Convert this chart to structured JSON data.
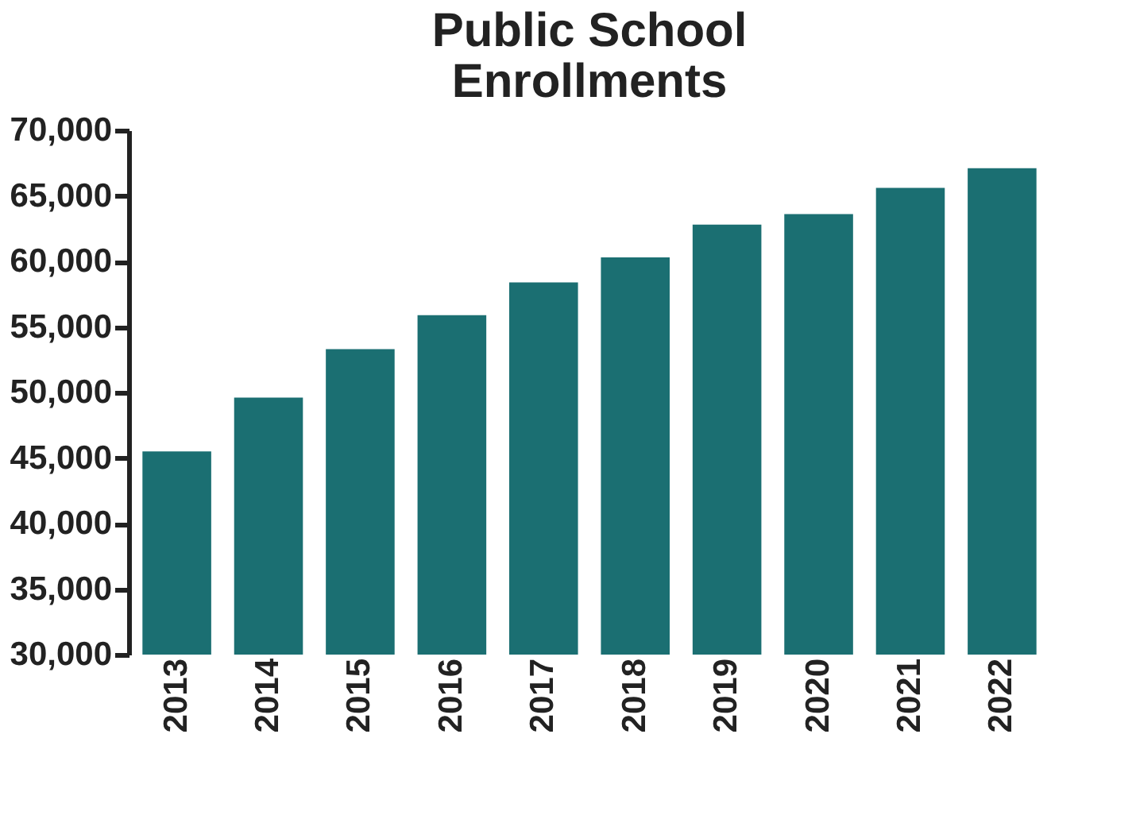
{
  "chart_data": {
    "type": "bar",
    "title": [
      "Public School",
      "Enrollments"
    ],
    "categories": [
      "2013",
      "2014",
      "2015",
      "2016",
      "2017",
      "2018",
      "2019",
      "2020",
      "2021",
      "2022"
    ],
    "values": [
      45500,
      49600,
      53300,
      55900,
      58400,
      60300,
      62800,
      63600,
      65600,
      67100
    ],
    "color": "#1b6f72",
    "ylim": [
      30000,
      70000
    ],
    "yticks": [
      {
        "value": 30000,
        "label": "30,000"
      },
      {
        "value": 35000,
        "label": "35,000"
      },
      {
        "value": 40000,
        "label": "40,000"
      },
      {
        "value": 45000,
        "label": "45,000"
      },
      {
        "value": 50000,
        "label": "50,000"
      },
      {
        "value": 55000,
        "label": "55,000"
      },
      {
        "value": 60000,
        "label": "60,000"
      },
      {
        "value": 65000,
        "label": "65,000"
      },
      {
        "value": 70000,
        "label": "70,000"
      }
    ],
    "grid": false
  }
}
